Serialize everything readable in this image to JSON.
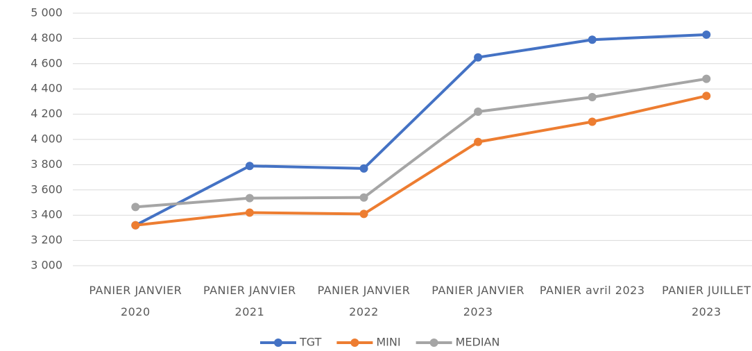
{
  "chart_data": {
    "type": "line",
    "categories": [
      "PANIER JANVIER 2020",
      "PANIER JANVIER 2021",
      "PANIER JANVIER 2022",
      "PANIER JANVIER 2023",
      "PANIER avril 2023",
      "PANIER JUILLET 2023"
    ],
    "series": [
      {
        "name": "TGT",
        "color": "#4472c4",
        "values": [
          3320,
          3790,
          3770,
          4650,
          4790,
          4830
        ]
      },
      {
        "name": "MINI",
        "color": "#ed7d31",
        "values": [
          3320,
          3420,
          3410,
          3980,
          4140,
          4345
        ]
      },
      {
        "name": "MEDIAN",
        "color": "#a5a5a5",
        "values": [
          3465,
          3535,
          3540,
          4220,
          4335,
          4480
        ]
      }
    ],
    "ylim": [
      3000,
      5000
    ],
    "yticks": [
      {
        "value": 3000,
        "label": "3 000"
      },
      {
        "value": 3200,
        "label": "3 200"
      },
      {
        "value": 3400,
        "label": "3 400"
      },
      {
        "value": 3600,
        "label": "3 600"
      },
      {
        "value": 3800,
        "label": "3 800"
      },
      {
        "value": 4000,
        "label": "4 000"
      },
      {
        "value": 4200,
        "label": "4 200"
      },
      {
        "value": 4400,
        "label": "4 400"
      },
      {
        "value": 4600,
        "label": "4 600"
      },
      {
        "value": 4800,
        "label": "4 800"
      },
      {
        "value": 5000,
        "label": "5 000"
      }
    ],
    "grid": true,
    "legend": "bottom"
  }
}
